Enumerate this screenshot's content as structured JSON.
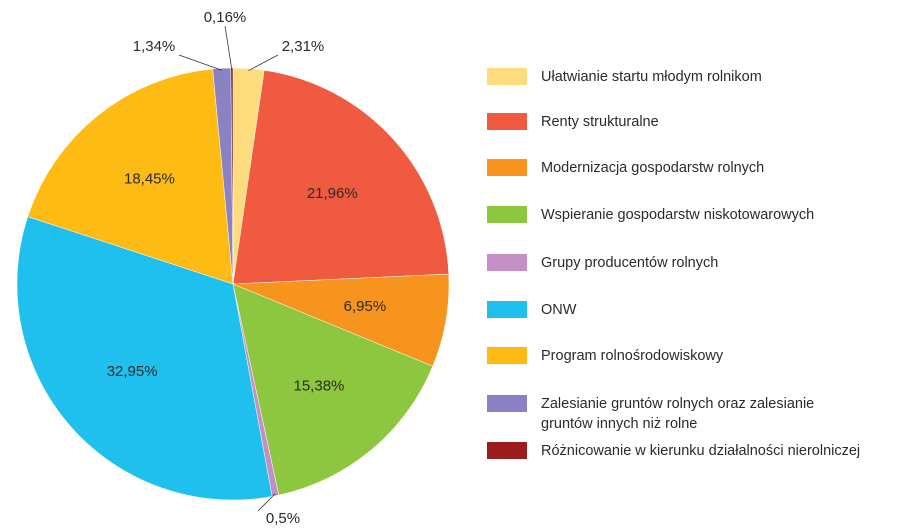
{
  "chart_data": {
    "type": "pie",
    "series": [
      {
        "name": "Ułatwianie startu młodym rolnikom",
        "color": "#fcdc7d",
        "values": [
          2.31
        ],
        "value_labels": [
          "2,31%"
        ]
      },
      {
        "name": "Renty strukturalne",
        "color": "#f05a40",
        "values": [
          21.96
        ],
        "value_labels": [
          "21,96%"
        ]
      },
      {
        "name": "Modernizacja gospodarstw rolnych",
        "color": "#f7941d",
        "values": [
          6.95
        ],
        "value_labels": [
          "6,95%"
        ]
      },
      {
        "name": "Wspieranie gospodarstw niskotowarowych",
        "color": "#8dc63f",
        "values": [
          15.38
        ],
        "value_labels": [
          "15,38%"
        ]
      },
      {
        "name": "Grupy producentów rolnych",
        "color": "#c38fc5",
        "values": [
          0.5
        ],
        "value_labels": [
          "0,5%"
        ]
      },
      {
        "name": "ONW",
        "color": "#1fbfee",
        "values": [
          32.95
        ],
        "value_labels": [
          "32,95%"
        ]
      },
      {
        "name": "Program rolnośrodowiskowy",
        "color": "#fdbb13",
        "values": [
          18.45
        ],
        "value_labels": [
          "18,45%"
        ]
      },
      {
        "name": "Zalesianie gruntów rolnych oraz zalesianie\ngruntów innych niż rolne",
        "color": "#8b82c4",
        "values": [
          1.34
        ],
        "value_labels": [
          "1,34%"
        ]
      },
      {
        "name": "Różnicowanie w kierunku działalności nierolniczej",
        "color": "#9b1b1f",
        "values": [
          0.16
        ],
        "value_labels": [
          "0,16%"
        ]
      }
    ]
  }
}
